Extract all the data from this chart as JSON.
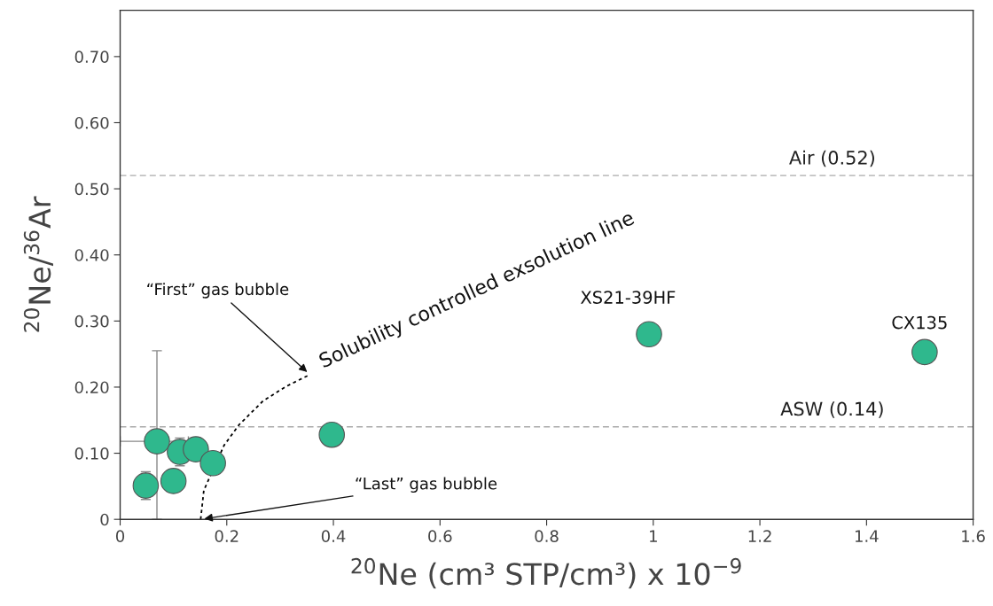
{
  "chart_data": {
    "type": "scatter",
    "xlabel": "$^{20}$Ne (cm³ STP/cm³) x 10$^{−9}$",
    "ylabel": "$^{20}$Ne/$^{36}$Ar",
    "xlim": [
      0,
      1.6
    ],
    "ylim": [
      0,
      0.77
    ],
    "xticks": [
      0,
      0.2,
      0.4,
      0.6,
      0.8,
      1,
      1.2,
      1.4,
      1.6
    ],
    "yticks": [
      0,
      {
        "value": 0.1,
        "label": "0.10"
      },
      {
        "value": 0.2,
        "label": "0.20"
      },
      {
        "value": 0.3,
        "label": "0.30"
      },
      {
        "value": 0.4,
        "label": "0.40"
      },
      {
        "value": 0.5,
        "label": "0.50"
      },
      {
        "value": 0.6,
        "label": "0.60"
      },
      {
        "value": 0.7,
        "label": "0.70"
      }
    ],
    "grid": false,
    "legend": false,
    "series": [
      {
        "color": "#2fb88d",
        "marker": "circle",
        "x": [
          0.048,
          0.069,
          0.1,
          0.112,
          0.142,
          0.174,
          0.397,
          0.992,
          1.509
        ],
        "values": [
          0.051,
          0.118,
          0.058,
          0.102,
          0.106,
          0.085,
          0.128,
          0.28,
          0.253
        ],
        "errors": [
          0.021,
          [
            0,
            0.255
          ],
          null,
          0.021,
          0.016,
          null,
          0.017,
          null,
          null
        ],
        "xerrors": [
          null,
          [
            0,
            0.128
          ],
          null,
          null,
          null,
          null,
          null,
          null,
          null
        ]
      },
      {
        "type": "line",
        "name": "Solubility controlled exsolution line",
        "color": "#000000",
        "line_style": "dotted",
        "x": [
          0.151,
          0.157,
          0.195,
          0.223,
          0.268,
          0.311,
          0.356
        ],
        "values": [
          0,
          0.044,
          0.112,
          0.143,
          0.179,
          0.201,
          0.219
        ]
      }
    ],
    "ref_lines": [
      {
        "axis": "y",
        "value": 0.52,
        "label": "Air (0.52)",
        "color": "#aaaaaa",
        "line_style": "dashed"
      },
      {
        "axis": "y",
        "value": 0.14,
        "label": "ASW (0.14)",
        "color": "#aaaaaa",
        "line_style": "dashed"
      }
    ],
    "annotations": [
      {
        "text": "XS21-39HF",
        "x": 0.992,
        "y": 0.28
      },
      {
        "text": "CX135",
        "x": 1.509,
        "y": 0.253
      },
      {
        "text": "“First” gas bubble",
        "x": 0.356,
        "y": 0.219
      },
      {
        "text": "“Last” gas bubble",
        "x": 0.151,
        "y": 0
      }
    ]
  }
}
